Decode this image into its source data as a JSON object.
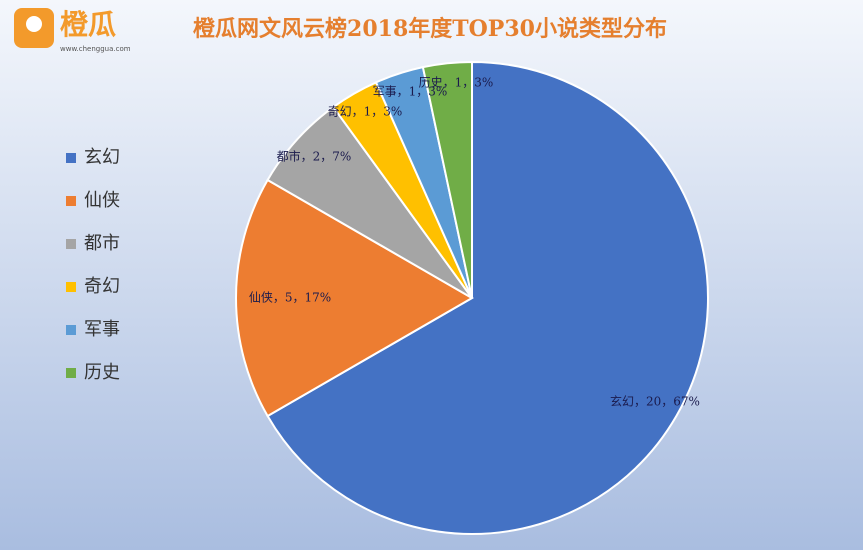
{
  "logo": {
    "name": "橙瓜",
    "url": "www.chenggua.com"
  },
  "chart_data": {
    "type": "pie",
    "title": "橙瓜网文风云榜2018年度TOP30小说类型分布",
    "categories": [
      "玄幻",
      "仙侠",
      "都市",
      "奇幻",
      "军事",
      "历史"
    ],
    "values": [
      20,
      5,
      2,
      1,
      1,
      1
    ],
    "value_labels": [
      "玄幻，20，67%",
      "仙侠，5，17%",
      "都市，2，7%",
      "奇幻，1，3%",
      "军事，1，3%",
      "历史，1，3%"
    ],
    "colors": [
      "#4472c4",
      "#ed7d31",
      "#a5a5a5",
      "#ffc000",
      "#5b9bd5",
      "#70ad47"
    ],
    "legend": "left"
  }
}
